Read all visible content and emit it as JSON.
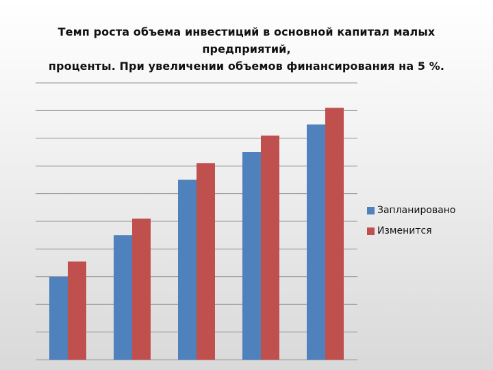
{
  "chart_data": {
    "type": "bar",
    "title_line1": "Темп роста объема инвестиций в основной капитал малых предприятий,",
    "title_line2": "проценты. При увеличении объемов финансирования на 5 %.",
    "xlabel": "",
    "ylabel": "",
    "ylim": [
      0,
      10
    ],
    "grid": true,
    "legend_position": "right",
    "categories": [
      "",
      "",
      "",
      "",
      ""
    ],
    "series": [
      {
        "name": "Запланировано",
        "color": "#4f81bd",
        "values": [
          3.0,
          4.5,
          6.5,
          7.5,
          8.5
        ]
      },
      {
        "name": "Изменится",
        "color": "#c0504d",
        "values": [
          3.55,
          5.1,
          7.1,
          8.1,
          9.1
        ]
      }
    ]
  }
}
